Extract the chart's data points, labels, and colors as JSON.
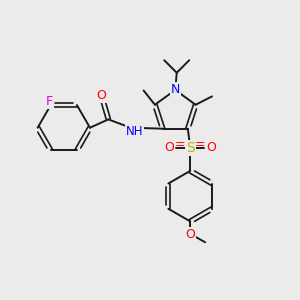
{
  "bg_color": "#ebebeb",
  "bond_color": "#1a1a1a",
  "atom_colors": {
    "F": "#e000e0",
    "O": "#ff0000",
    "N": "#0000ff",
    "S": "#b8b800",
    "C": "#1a1a1a"
  },
  "figsize": [
    3.0,
    3.0
  ],
  "dpi": 100
}
